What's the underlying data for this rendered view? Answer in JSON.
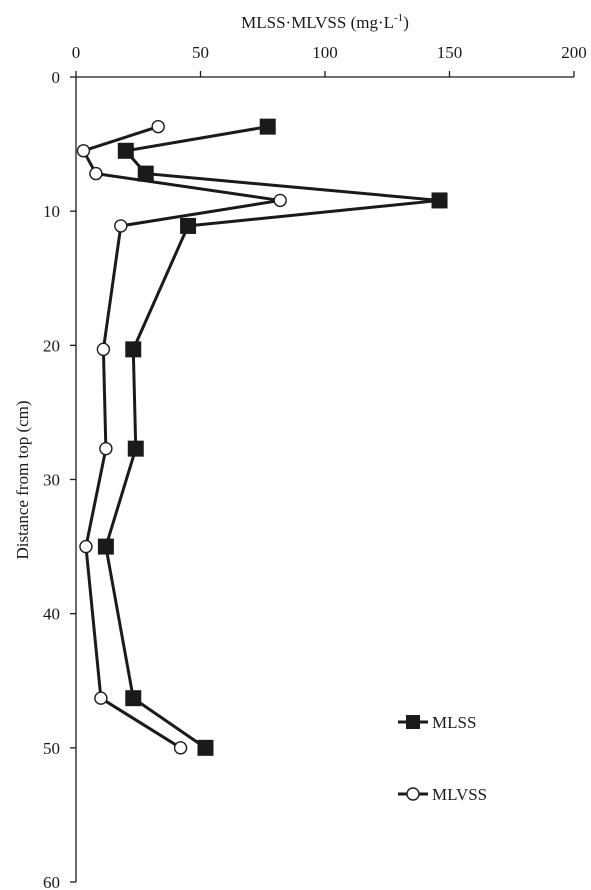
{
  "chart_data": {
    "type": "line",
    "orientation": "depth-profile",
    "xlabel_base": "MLSS·MLVSS (mg·L",
    "xlabel_sup": "-1",
    "xlabel_close": ")",
    "ylabel": "Distance from top (cm)",
    "xlim": [
      0,
      200
    ],
    "ylim": [
      0,
      60
    ],
    "y_inverted": true,
    "x_axis_position": "top",
    "xticks": [
      "0",
      "50",
      "100",
      "150",
      "200"
    ],
    "yticks": [
      "0",
      "10",
      "20",
      "30",
      "40",
      "50",
      "60"
    ],
    "grid": false,
    "legend_position": "bottom-right",
    "series": [
      {
        "name": "MLSS",
        "marker": "filled-square",
        "color": "#1a1a1a",
        "points": [
          {
            "x": 77,
            "y": 3.7
          },
          {
            "x": 20,
            "y": 5.5
          },
          {
            "x": 28,
            "y": 7.2
          },
          {
            "x": 146,
            "y": 9.2
          },
          {
            "x": 45,
            "y": 11.1
          },
          {
            "x": 23,
            "y": 20.3
          },
          {
            "x": 24,
            "y": 27.7
          },
          {
            "x": 12,
            "y": 35.0
          },
          {
            "x": 23,
            "y": 46.3
          },
          {
            "x": 52,
            "y": 50.0
          }
        ]
      },
      {
        "name": "MLVSS",
        "marker": "open-circle",
        "color": "#1a1a1a",
        "points": [
          {
            "x": 33,
            "y": 3.7
          },
          {
            "x": 3,
            "y": 5.5
          },
          {
            "x": 8,
            "y": 7.2
          },
          {
            "x": 82,
            "y": 9.2
          },
          {
            "x": 18,
            "y": 11.1
          },
          {
            "x": 11,
            "y": 20.3
          },
          {
            "x": 12,
            "y": 27.7
          },
          {
            "x": 4,
            "y": 35.0
          },
          {
            "x": 10,
            "y": 46.3
          },
          {
            "x": 42,
            "y": 50.0
          }
        ]
      }
    ]
  }
}
